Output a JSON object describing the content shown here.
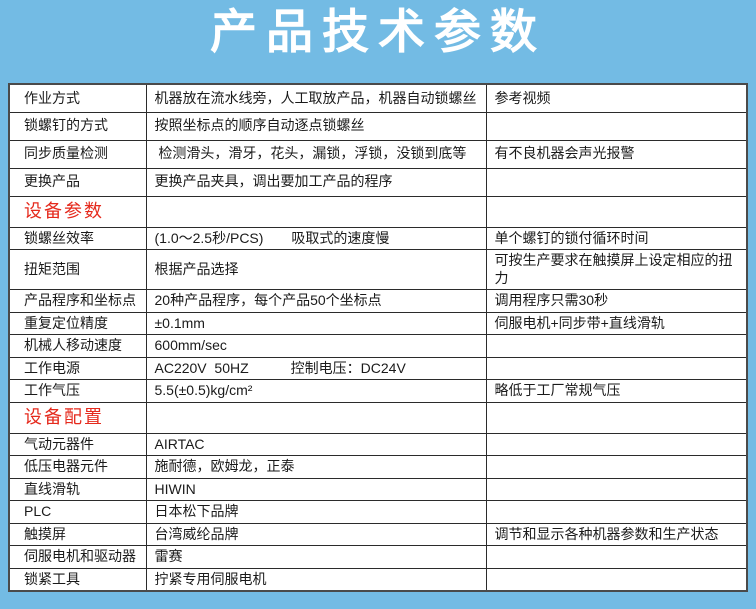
{
  "header": {
    "title": "产品技术参数"
  },
  "colors": {
    "page_background": "#73BBE4",
    "title_text": "#FFFFFF",
    "table_background": "#FFFFFF",
    "table_border": "#2B2B2B",
    "section_heading_text": "#E52A1D"
  },
  "table": {
    "rows": [
      {
        "type": "normal",
        "label": "作业方式",
        "middle": "机器放在流水线旁，人工取放产品，机器自动锁螺丝",
        "right": "参考视频"
      },
      {
        "type": "normal",
        "label": "锁螺钉的方式",
        "middle": "按照坐标点的顺序自动逐点锁螺丝",
        "right": ""
      },
      {
        "type": "normal",
        "label": "同步质量检测",
        "middle": " 检测滑头，滑牙，花头，漏锁，浮锁，没锁到底等",
        "right": "有不良机器会声光报警"
      },
      {
        "type": "normal",
        "label": "更换产品",
        "middle": "更换产品夹具，调出要加工产品的程序",
        "right": ""
      },
      {
        "type": "section",
        "label": "设备参数",
        "middle": "",
        "right": ""
      },
      {
        "type": "normal",
        "label": "锁螺丝效率",
        "middle": "(1.0～2.5秒/PCS)　　吸取式的速度慢",
        "right": "单个螺钉的锁付循环时间"
      },
      {
        "type": "normal",
        "label": "扭矩范围",
        "middle": "根据产品选择",
        "right": "可按生产要求在触摸屏上设定相应的扭力"
      },
      {
        "type": "normal",
        "label": "产品程序和坐标点",
        "middle": "20种产品程序，每个产品50个坐标点",
        "right": "调用程序只需30秒"
      },
      {
        "type": "normal",
        "label": "重复定位精度",
        "middle": "±0.1mm",
        "right": "伺服电机+同步带+直线滑轨"
      },
      {
        "type": "normal",
        "label": "机械人移动速度",
        "middle": "600mm/sec",
        "right": ""
      },
      {
        "type": "normal",
        "label": "工作电源",
        "middle": "AC220V  50HZ　　　控制电压：DC24V",
        "right": ""
      },
      {
        "type": "normal",
        "label": "工作气压",
        "middle": "5.5(±0.5)kg/cm²",
        "right": "略低于工厂常规气压"
      },
      {
        "type": "section",
        "label": "设备配置",
        "middle": "",
        "right": ""
      },
      {
        "type": "normal",
        "label": "气动元器件",
        "middle": "AIRTAC",
        "right": ""
      },
      {
        "type": "normal",
        "label": "低压电器元件",
        "middle": "施耐德，欧姆龙，正泰",
        "right": ""
      },
      {
        "type": "normal",
        "label": "直线滑轨",
        "middle": "HIWIN",
        "right": ""
      },
      {
        "type": "normal",
        "label": "PLC",
        "middle": "日本松下品牌",
        "right": ""
      },
      {
        "type": "normal",
        "label": "触摸屏",
        "middle": "台湾威纶品牌",
        "right": "调节和显示各种机器参数和生产状态"
      },
      {
        "type": "normal",
        "label": "伺服电机和驱动器",
        "middle": "雷赛",
        "right": ""
      },
      {
        "type": "normal",
        "label": "锁紧工具",
        "middle": "拧紧专用伺服电机",
        "right": ""
      }
    ]
  }
}
